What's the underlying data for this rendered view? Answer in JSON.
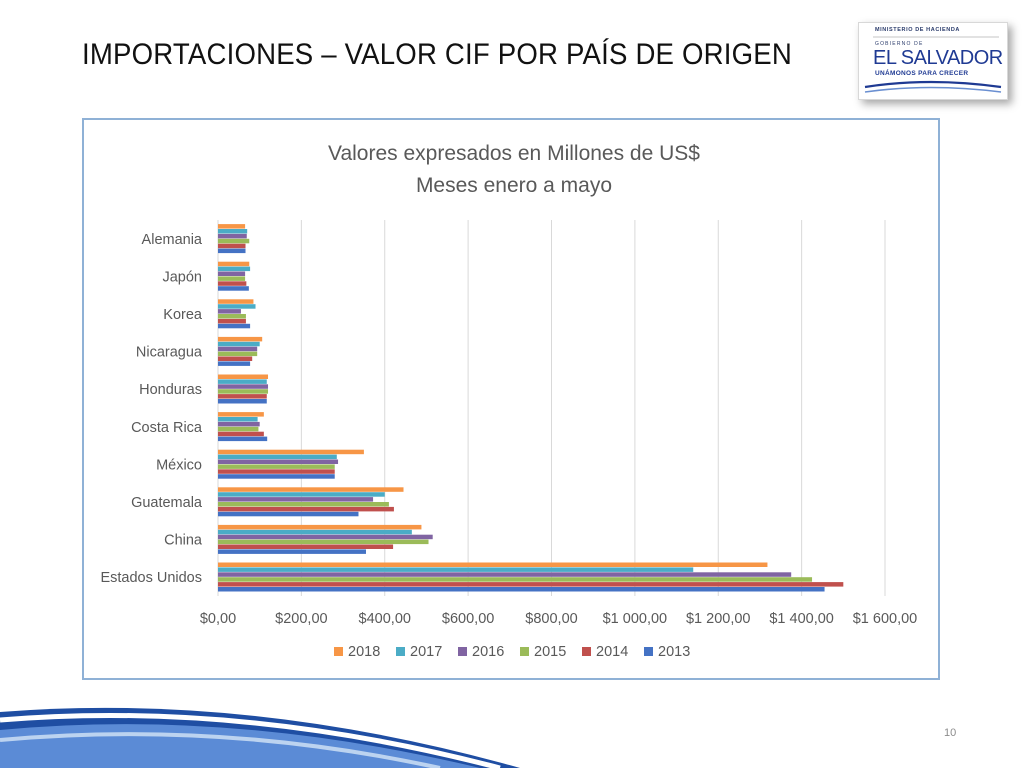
{
  "slide": {
    "title": "IMPORTACIONES –  VALOR CIF POR PAÍS DE ORIGEN",
    "page_number": "10",
    "logo": {
      "ministry": "MINISTERIO DE HACIENDA",
      "government": "GOBIERNO DE",
      "country": "EL SALVADOR",
      "motto": "UNÁMONOS PARA CRECER"
    }
  },
  "chart_data": {
    "type": "bar",
    "orientation": "horizontal",
    "title": "Valores expresados en Millones de US$",
    "subtitle": "Meses enero a mayo",
    "categories": [
      "Estados Unidos",
      "China",
      "Guatemala",
      "México",
      "Costa Rica",
      "Honduras",
      "Nicaragua",
      "Korea",
      "Japón",
      "Alemania"
    ],
    "series": [
      {
        "name": "2013",
        "color": "#4472c4",
        "values": [
          1455,
          355,
          337,
          280,
          118,
          117,
          77,
          77,
          74,
          66
        ]
      },
      {
        "name": "2014",
        "color": "#c0504d",
        "values": [
          1500,
          420,
          422,
          280,
          110,
          117,
          82,
          67,
          68,
          66
        ]
      },
      {
        "name": "2015",
        "color": "#9bbb59",
        "values": [
          1425,
          505,
          410,
          280,
          97,
          120,
          94,
          67,
          65,
          75
        ]
      },
      {
        "name": "2016",
        "color": "#8064a2",
        "values": [
          1375,
          515,
          372,
          288,
          100,
          120,
          94,
          55,
          65,
          69
        ]
      },
      {
        "name": "2017",
        "color": "#4bacc6",
        "values": [
          1140,
          465,
          400,
          285,
          95,
          117,
          100,
          90,
          77,
          70
        ]
      },
      {
        "name": "2018",
        "color": "#f79646",
        "values": [
          1318,
          488,
          445,
          350,
          110,
          120,
          106,
          85,
          75,
          65
        ]
      }
    ],
    "xlim": [
      0,
      1600
    ],
    "xticks": [
      0,
      200,
      400,
      600,
      800,
      1000,
      1200,
      1400,
      1600
    ],
    "xtick_labels": [
      "$0,00",
      "$200,00",
      "$400,00",
      "$600,00",
      "$800,00",
      "$1 000,00",
      "$1 200,00",
      "$1 400,00",
      "$1 600,00"
    ],
    "legend_order": [
      "2018",
      "2017",
      "2016",
      "2015",
      "2014",
      "2013"
    ],
    "legend_position": "bottom",
    "grid": true
  }
}
